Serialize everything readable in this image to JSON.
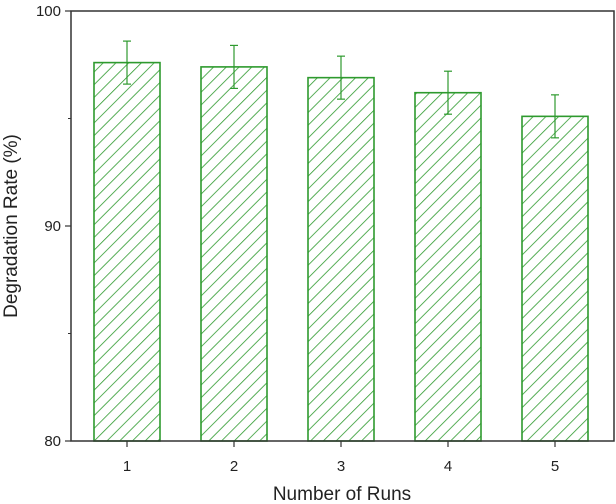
{
  "chart_data": {
    "type": "bar",
    "title": "",
    "xlabel": "Number of Runs",
    "ylabel": "Degradation Rate (%)",
    "categories": [
      "1",
      "2",
      "3",
      "4",
      "5"
    ],
    "values": [
      97.6,
      97.4,
      96.9,
      96.2,
      95.1
    ],
    "error": [
      1.0,
      1.0,
      1.0,
      1.0,
      1.0
    ],
    "ylim": [
      80,
      100
    ],
    "yticks": [
      80,
      90,
      100
    ],
    "grid": false,
    "legend": "none",
    "bar_color": "#2e9a2e",
    "bar_fill": "diagonal-hatch"
  }
}
